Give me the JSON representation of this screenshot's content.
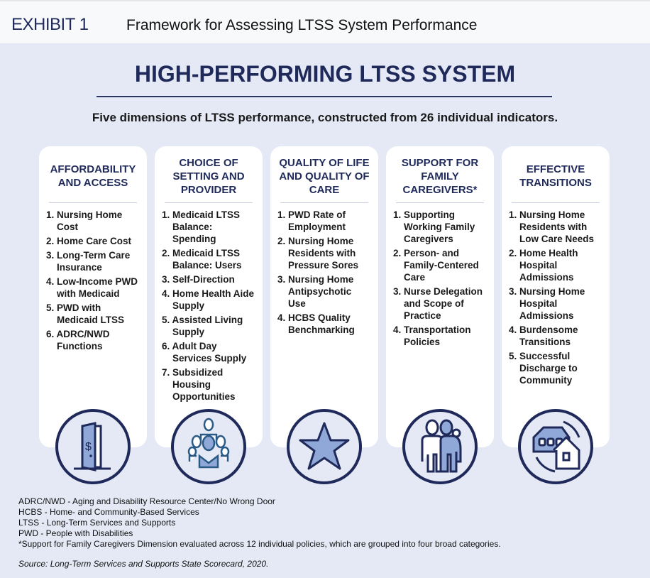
{
  "header": {
    "exhibit": "EXHIBIT 1",
    "title": "Framework for Assessing LTSS System Performance"
  },
  "main": {
    "title": "HIGH-PERFORMING LTSS SYSTEM",
    "subtitle": "Five dimensions of LTSS performance, constructed from 26 individual indicators."
  },
  "dimensions": [
    {
      "title": "AFFORDABILITY AND ACCESS",
      "icon": "door-dollar-icon",
      "items": [
        "1. Nursing Home Cost",
        "2. Home Care Cost",
        "3. Long-Term Care Insurance",
        "4. Low-Income PWD with Medicaid",
        "5. PWD with Medicaid LTSS",
        "6. ADRC/NWD Functions"
      ]
    },
    {
      "title": "CHOICE OF SETTING AND PROVIDER",
      "icon": "people-group-icon",
      "items": [
        "1. Medicaid LTSS Balance: Spending",
        "2. Medicaid LTSS Balance: Users",
        "3. Self-Direction",
        "4. Home Health Aide Supply",
        "5. Assisted Living Supply",
        "6. Adult Day Services Supply",
        "7. Subsidized Housing Opportunities"
      ]
    },
    {
      "title": "QUALITY OF LIFE AND QUALITY OF CARE",
      "icon": "star-icon",
      "items": [
        "1. PWD Rate of Employment",
        "2. Nursing Home Residents with Pressure Sores",
        "3. Nursing Home Antipsychotic Use",
        "4. HCBS Quality Benchmarking"
      ]
    },
    {
      "title": "SUPPORT FOR FAMILY CAREGIVERS*",
      "icon": "caregiver-icon",
      "items": [
        "1. Supporting Working Family Caregivers",
        "2. Person- and Family-Centered Care",
        "3. Nurse Delegation and Scope of Practice",
        "4. Transportation Policies"
      ]
    },
    {
      "title": "EFFECTIVE TRANSITIONS",
      "icon": "house-transition-icon",
      "items": [
        "1. Nursing Home Residents with Low Care Needs",
        "2. Home Health Hospital Admissions",
        "3. Nursing Home Hospital Admissions",
        "4. Burdensome Transitions",
        "5. Successful Discharge to Community"
      ]
    }
  ],
  "footnotes": [
    "ADRC/NWD - Aging and Disability Resource Center/No Wrong Door",
    "HCBS - Home- and Community-Based Services",
    "LTSS - Long-Term Services and Supports",
    "PWD - People with Disabilities",
    "*Support for Family Caregivers Dimension evaluated across 12 individual policies, which are grouped into four broad categories."
  ],
  "source": "Source: Long-Term Services and Supports State Scorecard, 2020.",
  "colors": {
    "navy": "#1f2a5a",
    "panel": "#e4e9f5",
    "icon_fill": "#8fa8d8"
  }
}
